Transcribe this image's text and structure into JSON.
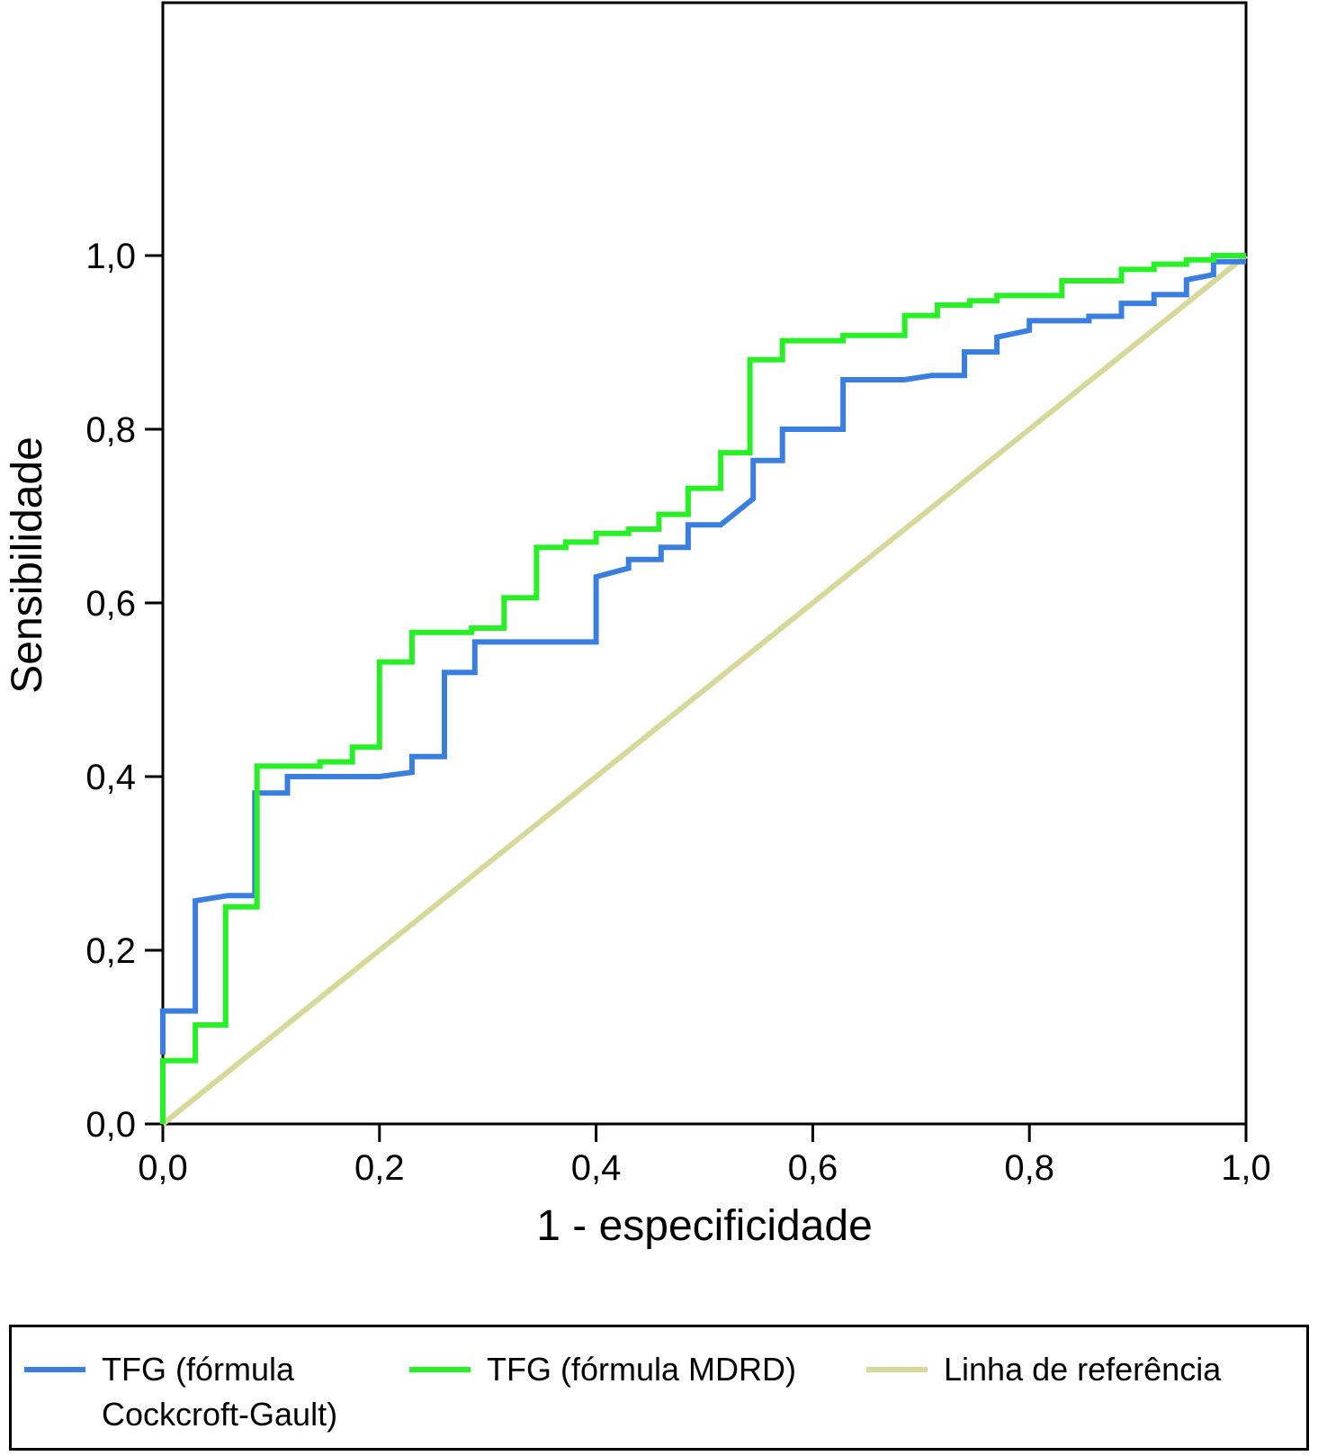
{
  "chart_data": {
    "type": "line",
    "xlabel": "1 - especificidade",
    "ylabel": "Sensibilidade",
    "xlim": [
      0,
      1
    ],
    "ylim": [
      0,
      1
    ],
    "x_ticks": [
      "0,0",
      "0,2",
      "0,4",
      "0,6",
      "0,8",
      "1,0"
    ],
    "y_ticks": [
      "0,0",
      "0,2",
      "0,4",
      "0,6",
      "0,8",
      "1,0"
    ],
    "grid": false,
    "legend_position": "bottom",
    "series": [
      {
        "name": "TFG (fórmula Cockcroft-Gault)",
        "color": "#3a7fe0",
        "points": [
          [
            0,
            0.08
          ],
          [
            0,
            0.13
          ],
          [
            0.03,
            0.13
          ],
          [
            0.03,
            0.257
          ],
          [
            0.06,
            0.263
          ],
          [
            0.085,
            0.263
          ],
          [
            0.085,
            0.381
          ],
          [
            0.115,
            0.381
          ],
          [
            0.115,
            0.4
          ],
          [
            0.2,
            0.4
          ],
          [
            0.23,
            0.405
          ],
          [
            0.23,
            0.423
          ],
          [
            0.26,
            0.423
          ],
          [
            0.26,
            0.52
          ],
          [
            0.288,
            0.52
          ],
          [
            0.288,
            0.555
          ],
          [
            0.4,
            0.555
          ],
          [
            0.4,
            0.63
          ],
          [
            0.43,
            0.64
          ],
          [
            0.43,
            0.65
          ],
          [
            0.46,
            0.65
          ],
          [
            0.46,
            0.664
          ],
          [
            0.485,
            0.664
          ],
          [
            0.485,
            0.69
          ],
          [
            0.515,
            0.69
          ],
          [
            0.545,
            0.72
          ],
          [
            0.545,
            0.764
          ],
          [
            0.572,
            0.764
          ],
          [
            0.572,
            0.8
          ],
          [
            0.628,
            0.8
          ],
          [
            0.628,
            0.857
          ],
          [
            0.685,
            0.857
          ],
          [
            0.71,
            0.862
          ],
          [
            0.74,
            0.862
          ],
          [
            0.74,
            0.889
          ],
          [
            0.77,
            0.889
          ],
          [
            0.77,
            0.906
          ],
          [
            0.8,
            0.914
          ],
          [
            0.8,
            0.925
          ],
          [
            0.855,
            0.925
          ],
          [
            0.855,
            0.93
          ],
          [
            0.885,
            0.93
          ],
          [
            0.885,
            0.945
          ],
          [
            0.915,
            0.945
          ],
          [
            0.915,
            0.955
          ],
          [
            0.945,
            0.955
          ],
          [
            0.945,
            0.972
          ],
          [
            0.97,
            0.978
          ],
          [
            0.97,
            0.993
          ],
          [
            1,
            0.993
          ]
        ]
      },
      {
        "name": "TFG (fórmula MDRD)",
        "color": "#27f027",
        "points": [
          [
            0,
            0
          ],
          [
            0,
            0.073
          ],
          [
            0.03,
            0.073
          ],
          [
            0.03,
            0.114
          ],
          [
            0.058,
            0.114
          ],
          [
            0.058,
            0.25
          ],
          [
            0.087,
            0.25
          ],
          [
            0.087,
            0.412
          ],
          [
            0.145,
            0.412
          ],
          [
            0.145,
            0.417
          ],
          [
            0.175,
            0.417
          ],
          [
            0.175,
            0.434
          ],
          [
            0.2,
            0.434
          ],
          [
            0.2,
            0.532
          ],
          [
            0.23,
            0.532
          ],
          [
            0.23,
            0.566
          ],
          [
            0.285,
            0.566
          ],
          [
            0.285,
            0.571
          ],
          [
            0.315,
            0.571
          ],
          [
            0.315,
            0.606
          ],
          [
            0.345,
            0.606
          ],
          [
            0.345,
            0.664
          ],
          [
            0.372,
            0.664
          ],
          [
            0.372,
            0.67
          ],
          [
            0.4,
            0.67
          ],
          [
            0.4,
            0.68
          ],
          [
            0.43,
            0.68
          ],
          [
            0.43,
            0.685
          ],
          [
            0.458,
            0.685
          ],
          [
            0.458,
            0.702
          ],
          [
            0.485,
            0.702
          ],
          [
            0.485,
            0.732
          ],
          [
            0.515,
            0.732
          ],
          [
            0.515,
            0.773
          ],
          [
            0.542,
            0.773
          ],
          [
            0.542,
            0.88
          ],
          [
            0.572,
            0.88
          ],
          [
            0.572,
            0.902
          ],
          [
            0.628,
            0.902
          ],
          [
            0.628,
            0.908
          ],
          [
            0.685,
            0.908
          ],
          [
            0.685,
            0.931
          ],
          [
            0.715,
            0.931
          ],
          [
            0.715,
            0.943
          ],
          [
            0.745,
            0.943
          ],
          [
            0.745,
            0.948
          ],
          [
            0.77,
            0.948
          ],
          [
            0.77,
            0.954
          ],
          [
            0.83,
            0.954
          ],
          [
            0.83,
            0.971
          ],
          [
            0.885,
            0.971
          ],
          [
            0.885,
            0.984
          ],
          [
            0.915,
            0.984
          ],
          [
            0.915,
            0.99
          ],
          [
            0.945,
            0.99
          ],
          [
            0.945,
            0.995
          ],
          [
            0.97,
            0.995
          ],
          [
            0.97,
            1
          ],
          [
            1,
            1
          ]
        ]
      },
      {
        "name": "Linha de referência",
        "color": "#d6d99a",
        "points": [
          [
            0,
            0
          ],
          [
            1,
            1
          ]
        ]
      }
    ]
  },
  "legend": {
    "items": [
      {
        "label": "TFG (fórmula Cockcroft-Gault)",
        "color": "#3a7fe0"
      },
      {
        "label": "TFG (fórmula MDRD)",
        "color": "#27f027"
      },
      {
        "label": "Linha de referência",
        "color": "#d6d99a"
      }
    ]
  }
}
